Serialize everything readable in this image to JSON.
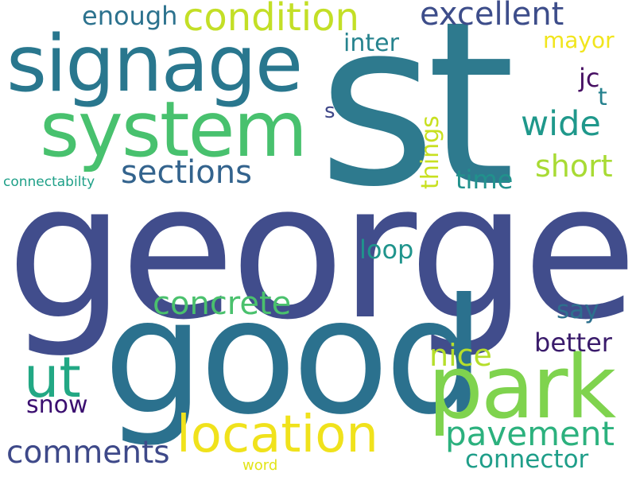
{
  "word_cloud": {
    "words": [
      {
        "text": "st",
        "color": "#2e7a8e"
      },
      {
        "text": "george",
        "color": "#414d8c"
      },
      {
        "text": "good",
        "color": "#2b718e"
      },
      {
        "text": "signage",
        "color": "#29778e"
      },
      {
        "text": "system",
        "color": "#48c16e"
      },
      {
        "text": "park",
        "color": "#7fd34e"
      },
      {
        "text": "location",
        "color": "#f0e21c"
      },
      {
        "text": "ut",
        "color": "#22a884"
      },
      {
        "text": "condition",
        "color": "#c3df26"
      },
      {
        "text": "excellent",
        "color": "#3d4d8a"
      },
      {
        "text": "sections",
        "color": "#33638d"
      },
      {
        "text": "concrete",
        "color": "#4ac16d"
      },
      {
        "text": "pavement",
        "color": "#2cb17e"
      },
      {
        "text": "comments",
        "color": "#3e4989"
      },
      {
        "text": "wide",
        "color": "#1f988b"
      },
      {
        "text": "short",
        "color": "#a8db34"
      },
      {
        "text": "nice",
        "color": "#b5de2b"
      },
      {
        "text": "connector",
        "color": "#1f9e89"
      },
      {
        "text": "better",
        "color": "#3a1b6b"
      },
      {
        "text": "enough",
        "color": "#2c728e"
      },
      {
        "text": "inter",
        "color": "#26838e"
      },
      {
        "text": "mayor",
        "color": "#f1e51d"
      },
      {
        "text": "things",
        "color": "#c8e020"
      },
      {
        "text": "time",
        "color": "#21918c"
      },
      {
        "text": "loop",
        "color": "#1f948c"
      },
      {
        "text": "say",
        "color": "#2d708e"
      },
      {
        "text": "snow",
        "color": "#3b0f70"
      },
      {
        "text": "jc",
        "color": "#471063"
      },
      {
        "text": "t",
        "color": "#26828e"
      },
      {
        "text": "s",
        "color": "#3f4788"
      },
      {
        "text": "connectabilty",
        "color": "#1fa088"
      },
      {
        "text": "word",
        "color": "#e2e418"
      }
    ]
  }
}
